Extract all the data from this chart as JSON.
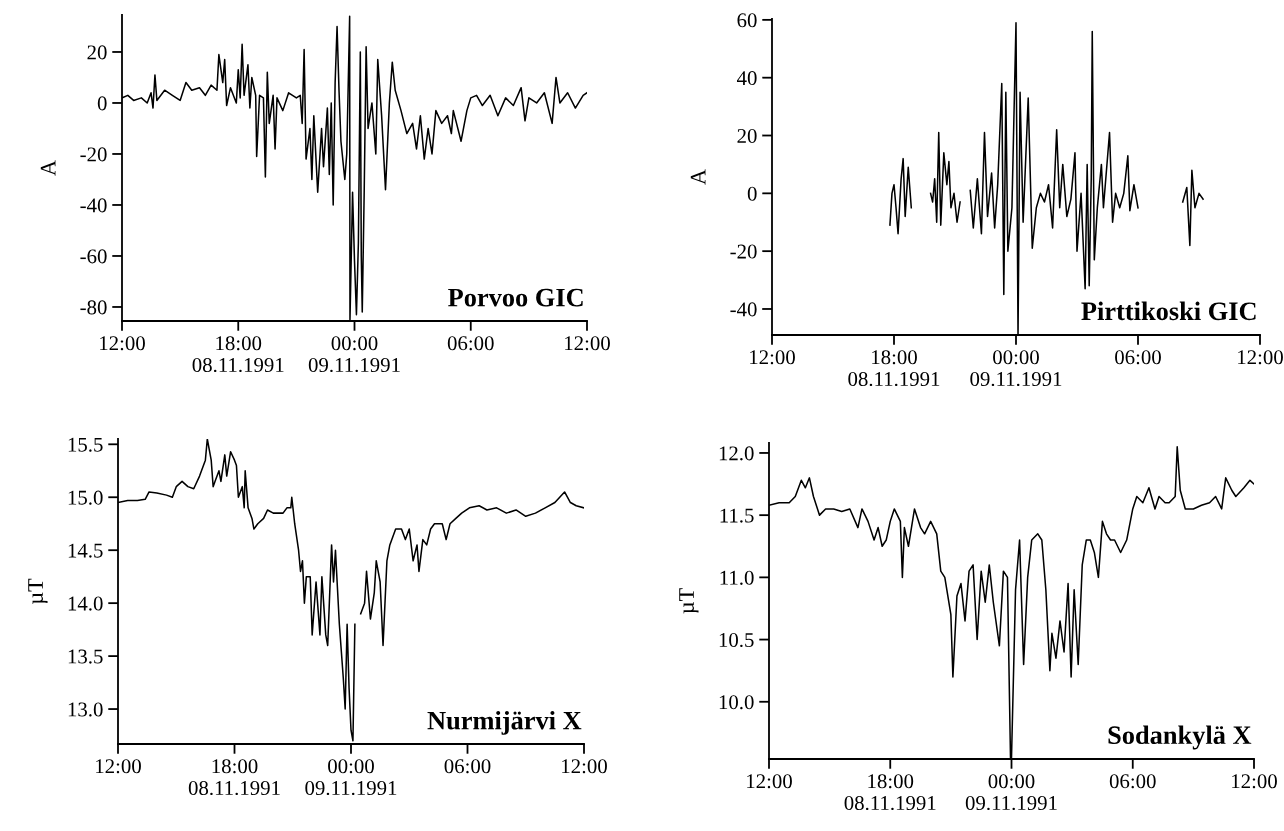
{
  "chart_data": [
    {
      "type": "line",
      "title": "Porvoo GIC",
      "ylabel": "A",
      "marker": "none",
      "line_style": "solid",
      "xlim": [
        "1991-11-08T12:00",
        "1991-11-09T12:00"
      ],
      "xticks": [
        {
          "value": "1991-11-08T12:00",
          "label": "12:00"
        },
        {
          "value": "1991-11-08T18:00",
          "label": "18:00\n08.11.1991"
        },
        {
          "value": "1991-11-09T00:00",
          "label": "00:00\n09.11.1991"
        },
        {
          "value": "1991-11-09T06:00",
          "label": "06:00"
        },
        {
          "value": "1991-11-09T12:00",
          "label": "12:00"
        }
      ],
      "ylim": [
        -85.5,
        34.5
      ],
      "yticks": [
        -80,
        -60,
        -40,
        -20,
        0,
        20
      ],
      "x": [
        "1991-11-08T12:00",
        "1991-11-08T12:18",
        "1991-11-08T12:36",
        "1991-11-08T13:00",
        "1991-11-08T13:18",
        "1991-11-08T13:30",
        "1991-11-08T13:36",
        "1991-11-08T13:42",
        "1991-11-08T13:48",
        "1991-11-08T14:12",
        "1991-11-08T14:36",
        "1991-11-08T15:00",
        "1991-11-08T15:18",
        "1991-11-08T15:36",
        "1991-11-08T16:00",
        "1991-11-08T16:18",
        "1991-11-08T16:36",
        "1991-11-08T16:54",
        "1991-11-08T17:00",
        "1991-11-08T17:12",
        "1991-11-08T17:18",
        "1991-11-08T17:24",
        "1991-11-08T17:36",
        "1991-11-08T17:54",
        "1991-11-08T18:00",
        "1991-11-08T18:06",
        "1991-11-08T18:12",
        "1991-11-08T18:18",
        "1991-11-08T18:30",
        "1991-11-08T18:36",
        "1991-11-08T18:42",
        "1991-11-08T18:54",
        "1991-11-08T18:57",
        "1991-11-08T19:06",
        "1991-11-08T19:18",
        "1991-11-08T19:24",
        "1991-11-08T19:30",
        "1991-11-08T19:36",
        "1991-11-08T19:48",
        "1991-11-08T19:54",
        "1991-11-08T20:00",
        "1991-11-08T20:18",
        "1991-11-08T20:36",
        "1991-11-08T21:00",
        "1991-11-08T21:12",
        "1991-11-08T21:18",
        "1991-11-08T21:24",
        "1991-11-08T21:30",
        "1991-11-08T21:42",
        "1991-11-08T21:48",
        "1991-11-08T21:54",
        "1991-11-08T22:06",
        "1991-11-08T22:18",
        "1991-11-08T22:24",
        "1991-11-08T22:36",
        "1991-11-08T22:42",
        "1991-11-08T22:48",
        "1991-11-08T22:54",
        "1991-11-08T23:00",
        "1991-11-08T23:06",
        "1991-11-08T23:12",
        "1991-11-08T23:18",
        "1991-11-08T23:30",
        "1991-11-08T23:36",
        "1991-11-08T23:45",
        "1991-11-08T23:46",
        "1991-11-08T23:54",
        "1991-11-09T00:00",
        "1991-11-09T00:06",
        "1991-11-09T00:12",
        "1991-11-09T00:18",
        "1991-11-09T00:21",
        "1991-11-09T00:24",
        "1991-11-09T00:30",
        "1991-11-09T00:36",
        "1991-11-09T00:42",
        "1991-11-09T00:54",
        "1991-11-09T01:06",
        "1991-11-09T01:12",
        "1991-11-09T01:24",
        "1991-11-09T01:36",
        "1991-11-09T01:48",
        "1991-11-09T01:57",
        "1991-11-09T02:06",
        "1991-11-09T02:24",
        "1991-11-09T02:42",
        "1991-11-09T03:00",
        "1991-11-09T03:12",
        "1991-11-09T03:24",
        "1991-11-09T03:36",
        "1991-11-09T03:48",
        "1991-11-09T04:00",
        "1991-11-09T04:12",
        "1991-11-09T04:30",
        "1991-11-09T04:48",
        "1991-11-09T05:00",
        "1991-11-09T05:06",
        "1991-11-09T05:30",
        "1991-11-09T05:48",
        "1991-11-09T06:00",
        "1991-11-09T06:18",
        "1991-11-09T06:36",
        "1991-11-09T07:00",
        "1991-11-09T07:24",
        "1991-11-09T07:48",
        "1991-11-09T08:12",
        "1991-11-09T08:36",
        "1991-11-09T08:48",
        "1991-11-09T09:00",
        "1991-11-09T09:24",
        "1991-11-09T09:48",
        "1991-11-09T10:12",
        "1991-11-09T10:24",
        "1991-11-09T10:36",
        "1991-11-09T11:00",
        "1991-11-09T11:24",
        "1991-11-09T11:48",
        "1991-11-09T12:00"
      ],
      "series": [
        {
          "color": "#000000",
          "values": [
            2,
            3,
            1,
            2,
            0,
            4,
            -2,
            11,
            1,
            5,
            3,
            1,
            8,
            5,
            6,
            3,
            7,
            5,
            19,
            8,
            17,
            -1,
            6,
            0,
            13,
            2,
            23,
            3,
            15,
            -2,
            10,
            3,
            -21,
            3,
            2,
            -29,
            12,
            -8,
            3,
            -18,
            2,
            -3,
            4,
            2,
            3,
            -8,
            21,
            -22,
            -10,
            -30,
            -5,
            -35,
            -10,
            -25,
            -2,
            -28,
            0,
            -40,
            8,
            30,
            5,
            -15,
            -30,
            -20,
            34,
            -85,
            -35,
            -62,
            -83,
            -55,
            20,
            -60,
            -82,
            -35,
            22,
            -10,
            0,
            -20,
            17,
            -5,
            -34,
            0,
            16,
            5,
            -3,
            -12,
            -8,
            -18,
            -5,
            -22,
            -10,
            -20,
            -3,
            -8,
            -5,
            -12,
            -3,
            -15,
            -3,
            2,
            3,
            -1,
            3,
            -5,
            2,
            -1,
            6,
            -7,
            2,
            0,
            4,
            -8,
            10,
            0,
            4,
            -2,
            3,
            4
          ]
        }
      ]
    },
    {
      "type": "line",
      "title": "Pirttikoski GIC",
      "ylabel": "A",
      "marker": "none",
      "line_style": "solid",
      "xlim": [
        "1991-11-08T12:00",
        "1991-11-09T12:00"
      ],
      "xticks": [
        {
          "value": "1991-11-08T12:00",
          "label": "12:00"
        },
        {
          "value": "1991-11-08T18:00",
          "label": "18:00\n08.11.1991"
        },
        {
          "value": "1991-11-09T00:00",
          "label": "00:00\n09.11.1991"
        },
        {
          "value": "1991-11-09T06:00",
          "label": "06:00"
        },
        {
          "value": "1991-11-09T12:00",
          "label": "12:00"
        }
      ],
      "ylim": [
        -49,
        60.3
      ],
      "yticks": [
        -40,
        -20,
        0,
        20,
        40,
        60
      ],
      "x": [
        "1991-11-08T17:48",
        "1991-11-08T17:54",
        "1991-11-08T18:00",
        "1991-11-08T18:06",
        "1991-11-08T18:12",
        "1991-11-08T18:21",
        "1991-11-08T18:27",
        "1991-11-08T18:33",
        "1991-11-08T18:42",
        "1991-11-08T18:51",
        "1991-11-08T19:18",
        "1991-11-08T19:48",
        "1991-11-08T19:54",
        "1991-11-08T20:00",
        "1991-11-08T20:06",
        "1991-11-08T20:12",
        "1991-11-08T20:18",
        "1991-11-08T20:27",
        "1991-11-08T20:36",
        "1991-11-08T20:42",
        "1991-11-08T20:48",
        "1991-11-08T20:57",
        "1991-11-08T21:06",
        "1991-11-08T21:15",
        "1991-11-08T21:30",
        "1991-11-08T21:45",
        "1991-11-08T21:54",
        "1991-11-08T22:06",
        "1991-11-08T22:18",
        "1991-11-08T22:27",
        "1991-11-08T22:36",
        "1991-11-08T22:48",
        "1991-11-08T22:57",
        "1991-11-08T23:06",
        "1991-11-08T23:18",
        "1991-11-08T23:24",
        "1991-11-08T23:30",
        "1991-11-08T23:36",
        "1991-11-08T23:48",
        "1991-11-09T00:00",
        "1991-11-09T00:06",
        "1991-11-09T00:12",
        "1991-11-09T00:21",
        "1991-11-09T00:36",
        "1991-11-09T00:48",
        "1991-11-09T01:00",
        "1991-11-09T01:12",
        "1991-11-09T01:24",
        "1991-11-09T01:36",
        "1991-11-09T01:48",
        "1991-11-09T02:00",
        "1991-11-09T02:09",
        "1991-11-09T02:18",
        "1991-11-09T02:30",
        "1991-11-09T02:42",
        "1991-11-09T02:54",
        "1991-11-09T03:00",
        "1991-11-09T03:12",
        "1991-11-09T03:24",
        "1991-11-09T03:30",
        "1991-11-09T03:36",
        "1991-11-09T03:42",
        "1991-11-09T03:45",
        "1991-11-09T03:51",
        "1991-11-09T04:00",
        "1991-11-09T04:12",
        "1991-11-09T04:18",
        "1991-11-09T04:36",
        "1991-11-09T04:45",
        "1991-11-09T04:54",
        "1991-11-09T05:06",
        "1991-11-09T05:18",
        "1991-11-09T05:30",
        "1991-11-09T05:36",
        "1991-11-09T05:48",
        "1991-11-09T06:00",
        "1991-11-09T07:00",
        "1991-11-09T08:12",
        "1991-11-09T08:24",
        "1991-11-09T08:33",
        "1991-11-09T08:39",
        "1991-11-09T08:48",
        "1991-11-09T09:00",
        "1991-11-09T09:12"
      ],
      "series": [
        {
          "color": "#000000",
          "values": [
            -11,
            0,
            3,
            -5,
            -14,
            5,
            12,
            -8,
            9,
            -5,
            null,
            0,
            -3,
            5,
            -10,
            21,
            -11,
            14,
            3,
            11,
            -5,
            0,
            -10,
            -3,
            null,
            1,
            -12,
            5,
            -14,
            21,
            -8,
            7,
            -12,
            3,
            38,
            -35,
            35,
            -20,
            -5,
            59,
            -49,
            35,
            -10,
            33,
            -19,
            -5,
            0,
            -3,
            3,
            -12,
            22,
            -5,
            10,
            -8,
            -2,
            14,
            -20,
            0,
            -33,
            10,
            -32,
            5,
            56,
            -23,
            -5,
            10,
            -5,
            21,
            -10,
            0,
            -5,
            0,
            13,
            -6,
            3,
            -5,
            null,
            -3,
            2,
            -18,
            8,
            -5,
            0,
            -2
          ]
        }
      ]
    },
    {
      "type": "line",
      "title": "Nurmijärvi X",
      "ylabel": "µT",
      "marker": "none",
      "line_style": "solid",
      "xlim": [
        "1991-11-08T12:00",
        "1991-11-09T12:00"
      ],
      "xticks": [
        {
          "value": "1991-11-08T12:00",
          "label": "12:00"
        },
        {
          "value": "1991-11-08T18:00",
          "label": "18:00\n08.11.1991"
        },
        {
          "value": "1991-11-09T00:00",
          "label": "00:00\n09.11.1991"
        },
        {
          "value": "1991-11-09T06:00",
          "label": "06:00"
        },
        {
          "value": "1991-11-09T12:00",
          "label": "12:00"
        }
      ],
      "ylim": [
        12.67,
        15.55
      ],
      "yticks": [
        {
          "value": 13.0,
          "label": "13.0"
        },
        {
          "value": 13.5,
          "label": "13.5"
        },
        {
          "value": 14.0,
          "label": "14.0"
        },
        {
          "value": 14.5,
          "label": "14.5"
        },
        {
          "value": 15.0,
          "label": "15.0"
        },
        {
          "value": 15.5,
          "label": "15.5"
        }
      ],
      "x": [
        "1991-11-08T12:00",
        "1991-11-08T12:30",
        "1991-11-08T13:00",
        "1991-11-08T13:24",
        "1991-11-08T13:36",
        "1991-11-08T14:00",
        "1991-11-08T14:30",
        "1991-11-08T14:48",
        "1991-11-08T15:00",
        "1991-11-08T15:18",
        "1991-11-08T15:36",
        "1991-11-08T15:54",
        "1991-11-08T16:12",
        "1991-11-08T16:30",
        "1991-11-08T16:36",
        "1991-11-08T16:48",
        "1991-11-08T16:54",
        "1991-11-08T17:00",
        "1991-11-08T17:12",
        "1991-11-08T17:18",
        "1991-11-08T17:30",
        "1991-11-08T17:36",
        "1991-11-08T17:48",
        "1991-11-08T18:00",
        "1991-11-08T18:06",
        "1991-11-08T18:12",
        "1991-11-08T18:24",
        "1991-11-08T18:30",
        "1991-11-08T18:33",
        "1991-11-08T18:42",
        "1991-11-08T18:54",
        "1991-11-08T19:00",
        "1991-11-08T19:12",
        "1991-11-08T19:30",
        "1991-11-08T19:42",
        "1991-11-08T20:00",
        "1991-11-08T20:18",
        "1991-11-08T20:30",
        "1991-11-08T20:42",
        "1991-11-08T20:54",
        "1991-11-08T20:57",
        "1991-11-08T21:06",
        "1991-11-08T21:18",
        "1991-11-08T21:24",
        "1991-11-08T21:30",
        "1991-11-08T21:36",
        "1991-11-08T21:42",
        "1991-11-08T21:54",
        "1991-11-08T22:00",
        "1991-11-08T22:12",
        "1991-11-08T22:24",
        "1991-11-08T22:30",
        "1991-11-08T22:42",
        "1991-11-08T22:48",
        "1991-11-08T23:00",
        "1991-11-08T23:06",
        "1991-11-08T23:12",
        "1991-11-08T23:24",
        "1991-11-08T23:36",
        "1991-11-08T23:42",
        "1991-11-08T23:48",
        "1991-11-08T23:54",
        "1991-11-09T00:00",
        "1991-11-09T00:06",
        "1991-11-09T00:12",
        "1991-11-09T00:18",
        "1991-11-09T00:24",
        "1991-11-09T00:30",
        "1991-11-09T00:42",
        "1991-11-09T00:48",
        "1991-11-09T01:00",
        "1991-11-09T01:12",
        "1991-11-09T01:18",
        "1991-11-09T01:30",
        "1991-11-09T01:39",
        "1991-11-09T01:51",
        "1991-11-09T02:00",
        "1991-11-09T02:18",
        "1991-11-09T02:36",
        "1991-11-09T02:48",
        "1991-11-09T03:00",
        "1991-11-09T03:12",
        "1991-11-09T03:24",
        "1991-11-09T03:30",
        "1991-11-09T03:42",
        "1991-11-09T03:54",
        "1991-11-09T04:06",
        "1991-11-09T04:18",
        "1991-11-09T04:42",
        "1991-11-09T04:54",
        "1991-11-09T05:06",
        "1991-11-09T05:24",
        "1991-11-09T05:42",
        "1991-11-09T06:06",
        "1991-11-09T06:36",
        "1991-11-09T07:00",
        "1991-11-09T07:30",
        "1991-11-09T08:00",
        "1991-11-09T08:30",
        "1991-11-09T09:00",
        "1991-11-09T09:30",
        "1991-11-09T10:00",
        "1991-11-09T10:30",
        "1991-11-09T11:00",
        "1991-11-09T11:18",
        "1991-11-09T11:36",
        "1991-11-09T12:00"
      ],
      "series": [
        {
          "color": "#000000",
          "values": [
            14.95,
            14.97,
            14.97,
            14.98,
            15.05,
            15.04,
            15.02,
            15.0,
            15.1,
            15.15,
            15.1,
            15.08,
            15.2,
            15.35,
            15.55,
            15.35,
            15.1,
            15.15,
            15.25,
            15.15,
            15.4,
            15.2,
            15.43,
            15.35,
            15.3,
            15.0,
            15.1,
            14.9,
            15.25,
            14.9,
            14.8,
            14.7,
            14.75,
            14.8,
            14.88,
            14.85,
            14.85,
            14.85,
            14.9,
            14.9,
            15.0,
            14.75,
            14.5,
            14.3,
            14.4,
            14.0,
            14.25,
            14.25,
            13.7,
            14.2,
            13.7,
            14.25,
            13.7,
            13.6,
            14.55,
            14.2,
            14.5,
            13.8,
            13.3,
            13.0,
            13.8,
            13.2,
            12.8,
            12.7,
            13.8,
            null,
            null,
            13.9,
            14.0,
            14.3,
            13.85,
            14.1,
            14.4,
            14.2,
            13.6,
            14.4,
            14.55,
            14.7,
            14.7,
            14.6,
            14.7,
            14.4,
            14.55,
            14.3,
            14.6,
            14.55,
            14.7,
            14.75,
            14.75,
            14.6,
            14.75,
            14.8,
            14.85,
            14.9,
            14.92,
            14.88,
            14.9,
            14.85,
            14.88,
            14.82,
            14.85,
            14.9,
            14.95,
            15.05,
            14.95,
            14.92,
            14.9
          ]
        }
      ]
    },
    {
      "type": "line",
      "title": "Sodankylä X",
      "ylabel": "µT",
      "marker": "none",
      "line_style": "solid",
      "xlim": [
        "1991-11-08T12:00",
        "1991-11-09T12:00"
      ],
      "xticks": [
        {
          "value": "1991-11-08T12:00",
          "label": "12:00"
        },
        {
          "value": "1991-11-08T18:00",
          "label": "18:00\n08.11.1991"
        },
        {
          "value": "1991-11-09T00:00",
          "label": "00:00\n09.11.1991"
        },
        {
          "value": "1991-11-09T06:00",
          "label": "06:00"
        },
        {
          "value": "1991-11-09T12:00",
          "label": "12:00"
        }
      ],
      "ylim": [
        9.54,
        12.08
      ],
      "yticks": [
        {
          "value": 10.0,
          "label": "10.0"
        },
        {
          "value": 10.5,
          "label": "10.5"
        },
        {
          "value": 11.0,
          "label": "11.0"
        },
        {
          "value": 11.5,
          "label": "11.5"
        },
        {
          "value": 12.0,
          "label": "12.0"
        }
      ],
      "x": [
        "1991-11-08T12:00",
        "1991-11-08T12:30",
        "1991-11-08T13:00",
        "1991-11-08T13:18",
        "1991-11-08T13:36",
        "1991-11-08T13:48",
        "1991-11-08T14:00",
        "1991-11-08T14:12",
        "1991-11-08T14:30",
        "1991-11-08T14:48",
        "1991-11-08T15:12",
        "1991-11-08T15:36",
        "1991-11-08T16:00",
        "1991-11-08T16:24",
        "1991-11-08T16:36",
        "1991-11-08T16:54",
        "1991-11-08T17:12",
        "1991-11-08T17:24",
        "1991-11-08T17:36",
        "1991-11-08T17:48",
        "1991-11-08T18:00",
        "1991-11-08T18:12",
        "1991-11-08T18:30",
        "1991-11-08T18:36",
        "1991-11-08T18:42",
        "1991-11-08T18:54",
        "1991-11-08T19:12",
        "1991-11-08T19:30",
        "1991-11-08T19:42",
        "1991-11-08T20:00",
        "1991-11-08T20:18",
        "1991-11-08T20:30",
        "1991-11-08T20:42",
        "1991-11-08T21:00",
        "1991-11-08T21:06",
        "1991-11-08T21:18",
        "1991-11-08T21:30",
        "1991-11-08T21:42",
        "1991-11-08T21:54",
        "1991-11-08T22:06",
        "1991-11-08T22:18",
        "1991-11-08T22:30",
        "1991-11-08T22:42",
        "1991-11-08T22:54",
        "1991-11-08T23:06",
        "1991-11-08T23:24",
        "1991-11-08T23:36",
        "1991-11-08T23:48",
        "1991-11-08T23:57",
        "1991-11-09T00:00",
        "1991-11-09T00:12",
        "1991-11-09T00:24",
        "1991-11-09T00:36",
        "1991-11-09T00:48",
        "1991-11-09T01:00",
        "1991-11-09T01:18",
        "1991-11-09T01:30",
        "1991-11-09T01:42",
        "1991-11-09T01:54",
        "1991-11-09T02:00",
        "1991-11-09T02:12",
        "1991-11-09T02:24",
        "1991-11-09T02:36",
        "1991-11-09T02:48",
        "1991-11-09T02:57",
        "1991-11-09T03:06",
        "1991-11-09T03:18",
        "1991-11-09T03:30",
        "1991-11-09T03:42",
        "1991-11-09T03:54",
        "1991-11-09T04:06",
        "1991-11-09T04:18",
        "1991-11-09T04:30",
        "1991-11-09T04:42",
        "1991-11-09T04:54",
        "1991-11-09T05:06",
        "1991-11-09T05:24",
        "1991-11-09T05:42",
        "1991-11-09T06:00",
        "1991-11-09T06:12",
        "1991-11-09T06:30",
        "1991-11-09T06:48",
        "1991-11-09T07:06",
        "1991-11-09T07:18",
        "1991-11-09T07:36",
        "1991-11-09T07:48",
        "1991-11-09T08:06",
        "1991-11-09T08:12",
        "1991-11-09T08:21",
        "1991-11-09T08:36",
        "1991-11-09T09:00",
        "1991-11-09T09:24",
        "1991-11-09T09:48",
        "1991-11-09T10:06",
        "1991-11-09T10:24",
        "1991-11-09T10:36",
        "1991-11-09T10:54",
        "1991-11-09T11:06",
        "1991-11-09T11:30",
        "1991-11-09T11:48",
        "1991-11-09T12:00"
      ],
      "series": [
        {
          "color": "#000000",
          "values": [
            11.58,
            11.6,
            11.6,
            11.65,
            11.78,
            11.72,
            11.8,
            11.65,
            11.5,
            11.55,
            11.55,
            11.53,
            11.55,
            11.4,
            11.55,
            11.45,
            11.3,
            11.4,
            11.25,
            11.3,
            11.45,
            11.55,
            11.45,
            11.0,
            11.4,
            11.25,
            11.55,
            11.4,
            11.35,
            11.45,
            11.35,
            11.05,
            11.0,
            10.7,
            10.2,
            10.85,
            10.95,
            10.65,
            11.05,
            11.1,
            10.5,
            11.05,
            10.8,
            11.1,
            10.8,
            10.45,
            11.05,
            11.0,
            9.55,
            9.55,
            10.9,
            11.3,
            10.3,
            11.0,
            11.3,
            11.35,
            11.3,
            10.9,
            10.25,
            10.55,
            10.35,
            10.65,
            10.4,
            10.95,
            10.2,
            10.9,
            10.3,
            11.1,
            11.3,
            11.3,
            11.2,
            11.0,
            11.45,
            11.35,
            11.3,
            11.3,
            11.2,
            11.3,
            11.55,
            11.65,
            11.6,
            11.72,
            11.55,
            11.65,
            11.6,
            11.6,
            11.65,
            12.05,
            11.7,
            11.55,
            11.55,
            11.58,
            11.6,
            11.65,
            11.55,
            11.8,
            11.7,
            11.65,
            11.72,
            11.78,
            11.75
          ]
        }
      ]
    }
  ]
}
